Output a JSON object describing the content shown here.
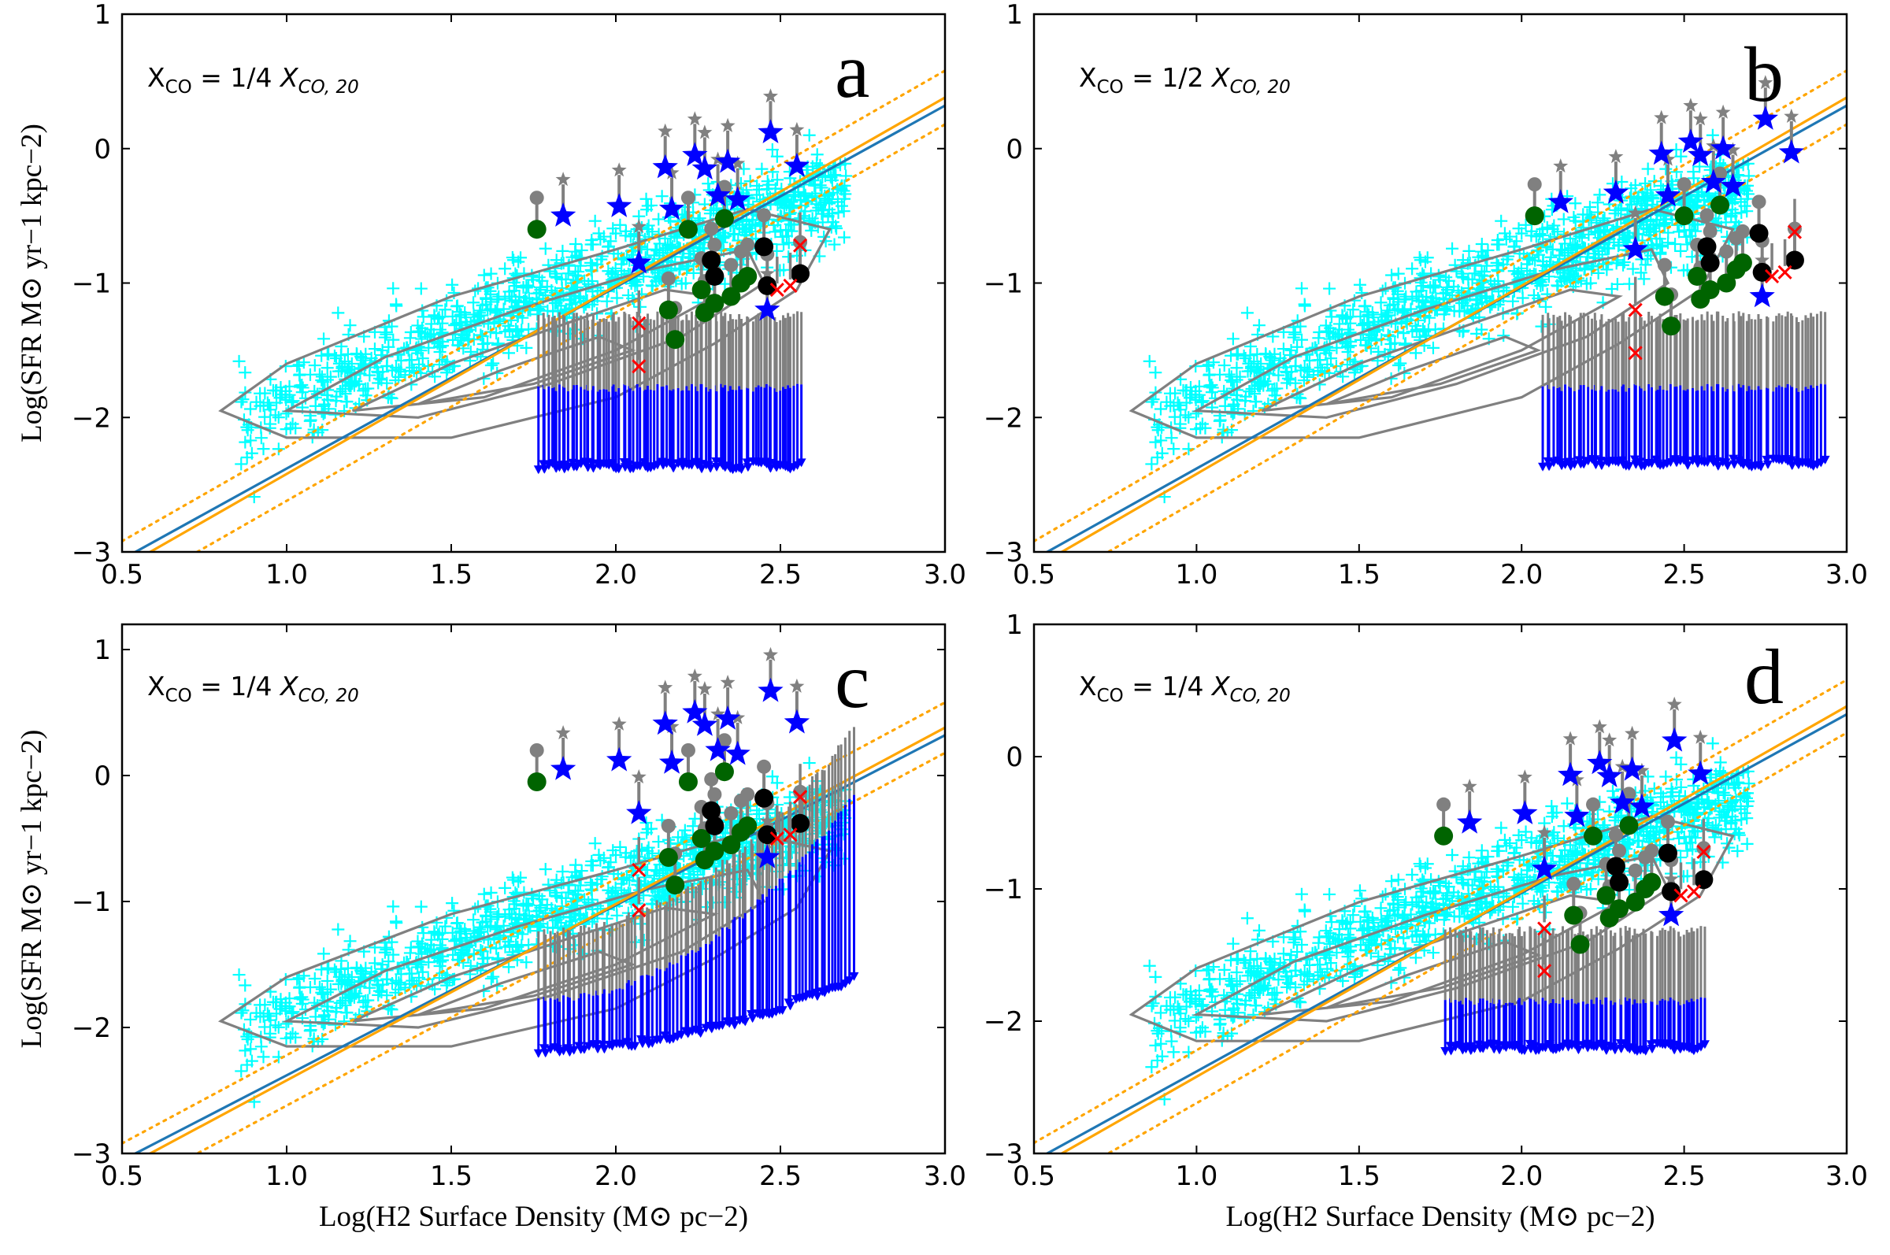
{
  "chart_data": [
    {
      "type": "scatter",
      "panel": "a",
      "annotation": "X_CO = 1/4 X_CO,20",
      "annotation_prefix": "X",
      "annotation_sub1": "CO",
      "annotation_mid": " = 1/4 ",
      "annotation_X": "X",
      "annotation_sub2": "CO, 20",
      "xlabel": "Log(H2 Surface Density (M⊙ pc−2)",
      "ylabel": "Log(SFR M⊙ yr−1 kpc−2)",
      "xlim": [
        0.5,
        3.0
      ],
      "ylim": [
        -3,
        1
      ],
      "xticks": [
        "0.5",
        "1.0",
        "1.5",
        "2.0",
        "2.5",
        "3.0"
      ],
      "yticks": [
        "−3",
        "−2",
        "−1",
        "0",
        "1"
      ],
      "upper_limit_range": [
        1.77,
        2.56
      ],
      "upper_limit_blue_top": -1.78,
      "upper_limit_gray_top": -1.25,
      "upper_limit_bottom": -2.38,
      "upper_limit_curve": 0
    },
    {
      "type": "scatter",
      "panel": "b",
      "annotation": "X_CO = 1/2 X_CO,20",
      "annotation_prefix": "X",
      "annotation_sub1": "CO",
      "annotation_mid": " = 1/2 ",
      "annotation_X": "X",
      "annotation_sub2": "CO, 20",
      "xlim": [
        0.5,
        3.0
      ],
      "ylim": [
        -3,
        1
      ],
      "xticks": [
        "0.5",
        "1.0",
        "1.5",
        "2.0",
        "2.5",
        "3.0"
      ],
      "yticks": [
        "−3",
        "−2",
        "−1",
        "0",
        "1"
      ],
      "upper_limit_range": [
        2.07,
        2.93
      ],
      "upper_limit_blue_top": -1.78,
      "upper_limit_gray_top": -1.25,
      "upper_limit_bottom": -2.36,
      "upper_limit_curve": 0
    },
    {
      "type": "scatter",
      "panel": "c",
      "annotation": "X_CO = 1/4 X_CO,20",
      "annotation_prefix": "X",
      "annotation_sub1": "CO",
      "annotation_mid": " = 1/4 ",
      "annotation_X": "X",
      "annotation_sub2": "CO, 20",
      "xlabel": "Log(H2 Surface Density (M⊙ pc−2)",
      "ylabel": "Log(SFR M⊙ yr−1 kpc−2)",
      "xlim": [
        0.5,
        3.0
      ],
      "ylim": [
        -3,
        1.2
      ],
      "xticks": [
        "0.5",
        "1.0",
        "1.5",
        "2.0",
        "2.5",
        "3.0"
      ],
      "yticks": [
        "−3",
        "−2",
        "−1",
        "0",
        "1"
      ],
      "upper_limit_range": [
        1.77,
        2.72
      ],
      "upper_limit_blue_top": -1.78,
      "upper_limit_gray_top": -1.25,
      "upper_limit_bottom": -2.2,
      "upper_limit_curve": 1.6
    },
    {
      "type": "scatter",
      "panel": "d",
      "annotation": "X_CO = 1/4 X_CO,20",
      "annotation_prefix": "X",
      "annotation_sub1": "CO",
      "annotation_mid": " = 1/4 ",
      "annotation_X": "X",
      "annotation_sub2": "CO, 20",
      "xlabel": "Log(H2 Surface Density (M⊙ pc−2)",
      "xlim": [
        0.5,
        3.0
      ],
      "ylim": [
        -3,
        1
      ],
      "xticks": [
        "0.5",
        "1.0",
        "1.5",
        "2.0",
        "2.5",
        "3.0"
      ],
      "yticks": [
        "−3",
        "−2",
        "−1",
        "0",
        "1"
      ],
      "upper_limit_range": [
        1.77,
        2.56
      ],
      "upper_limit_blue_top": -1.85,
      "upper_limit_gray_top": -1.32,
      "upper_limit_bottom": -2.22,
      "upper_limit_curve": 0
    }
  ],
  "fits": {
    "blue_line": {
      "slope": 1.35,
      "intercept": -3.73
    },
    "orange_line": {
      "slope": 1.4,
      "intercept": -3.82
    },
    "orange_dotted_offset": 0.2
  },
  "contour_levels": [
    [
      [
        0.8,
        -1.95
      ],
      [
        1.0,
        -1.6
      ],
      [
        1.5,
        -1.1
      ],
      [
        2.0,
        -0.75
      ],
      [
        2.4,
        -0.45
      ],
      [
        2.65,
        -0.6
      ],
      [
        2.55,
        -1.05
      ],
      [
        2.3,
        -1.45
      ],
      [
        2.0,
        -1.85
      ],
      [
        1.5,
        -2.15
      ],
      [
        1.0,
        -2.15
      ]
    ],
    [
      [
        1.0,
        -1.95
      ],
      [
        1.3,
        -1.55
      ],
      [
        1.7,
        -1.2
      ],
      [
        2.1,
        -0.9
      ],
      [
        2.4,
        -0.75
      ],
      [
        2.45,
        -1.0
      ],
      [
        2.2,
        -1.4
      ],
      [
        1.8,
        -1.75
      ],
      [
        1.4,
        -2.0
      ]
    ],
    [
      [
        1.2,
        -1.95
      ],
      [
        1.5,
        -1.6
      ],
      [
        1.85,
        -1.3
      ],
      [
        2.15,
        -1.05
      ],
      [
        2.3,
        -1.1
      ],
      [
        2.0,
        -1.5
      ],
      [
        1.6,
        -1.85
      ]
    ],
    [
      [
        1.4,
        -1.9
      ],
      [
        1.65,
        -1.65
      ],
      [
        1.95,
        -1.4
      ],
      [
        2.05,
        -1.5
      ],
      [
        1.75,
        -1.75
      ]
    ]
  ],
  "colors": {
    "cyan_points": "#00ffff",
    "blue_star": "#0000ff",
    "gray": "#808080",
    "green_dot": "#006400",
    "black_dot": "#000000",
    "red_x": "#ff0000",
    "blue_line": "#1f77b4",
    "orange_line": "#ffa500",
    "contour": "#808080"
  },
  "markers": {
    "stars": [
      [
        1.84,
        -0.5
      ],
      [
        2.01,
        -0.43
      ],
      [
        2.07,
        -0.85
      ],
      [
        2.15,
        -0.14
      ],
      [
        2.17,
        -0.45
      ],
      [
        2.24,
        -0.05
      ],
      [
        2.27,
        -0.15
      ],
      [
        2.31,
        -0.35
      ],
      [
        2.34,
        -0.1
      ],
      [
        2.37,
        -0.38
      ],
      [
        2.46,
        -1.2
      ],
      [
        2.47,
        0.12
      ],
      [
        2.55,
        -0.13
      ]
    ],
    "green": [
      [
        1.76,
        -0.6
      ],
      [
        2.16,
        -1.2
      ],
      [
        2.18,
        -1.42
      ],
      [
        2.22,
        -0.6
      ],
      [
        2.26,
        -1.05
      ],
      [
        2.27,
        -1.22
      ],
      [
        2.3,
        -1.15
      ],
      [
        2.33,
        -0.52
      ],
      [
        2.35,
        -1.1
      ],
      [
        2.38,
        -1.0
      ],
      [
        2.4,
        -0.95
      ]
    ],
    "black": [
      [
        2.29,
        -0.83
      ],
      [
        2.3,
        -0.95
      ],
      [
        2.45,
        -0.73
      ],
      [
        2.46,
        -1.02
      ],
      [
        2.56,
        -0.93
      ]
    ],
    "red": [
      [
        2.07,
        -1.3
      ],
      [
        2.07,
        -1.62
      ],
      [
        2.49,
        -1.05
      ],
      [
        2.53,
        -1.02
      ],
      [
        2.56,
        -0.72
      ]
    ]
  }
}
